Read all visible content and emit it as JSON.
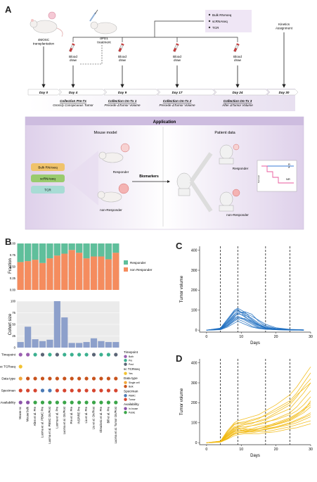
{
  "panels": {
    "a": "A",
    "b": "B",
    "c": "C",
    "d": "D"
  },
  "panelA": {
    "mouse_label": "4MOSC\ntransplantation",
    "treatment_label": "αPD1\ntreatment",
    "assays": [
      "Bulk RNAseq",
      "scRNAseq",
      "TCR"
    ],
    "kinetics_label": "Kinetics\nAssignment",
    "blood_draw": "Blood\ndraw",
    "days": [
      "Day 0",
      "Day 4",
      "Day 9",
      "Day 17",
      "Day 24",
      "Day 30"
    ],
    "collections": [
      {
        "title": "Collection Pre-Tx",
        "sub": "Grossly Conspicuous Tumor"
      },
      {
        "title": "Collection On-Tx 1",
        "sub": "Precede ΔTumor Volume"
      },
      {
        "title": "Collection On-Tx 2",
        "sub": "Precede ΔTumor Volume"
      },
      {
        "title": "Collection On-Tx 3",
        "sub": "After ΔTumor Volume"
      }
    ],
    "application": {
      "title": "Application",
      "mouse_model": "Mouse model",
      "patient_data": "Patient data",
      "assay_boxes": [
        "Bulk RNAseq",
        "scRNAseq",
        "TCR"
      ],
      "responder": "Responder",
      "non_responder": "non-Responder",
      "biomarkers": "Biomarkers",
      "star": "*",
      "km_r": "R",
      "km_nr": "NR",
      "km_ylabel": "Survival"
    }
  },
  "panelB": {
    "fraction_ylabel": "Fraction",
    "cohort_ylabel": "Cohort size",
    "legend": [
      "Responder",
      "non Responder"
    ],
    "meta_rows": [
      "Timepoint",
      "sc TCRseq",
      "Data type",
      "Speciman",
      "Availability"
    ],
    "legend_groups": [
      {
        "title": "Timepoint",
        "items": [
          "Both",
          "Pre",
          "Post"
        ]
      },
      {
        "title": "sc TCRseq",
        "items": [
          "Yes"
        ]
      },
      {
        "title": "Data type",
        "items": [
          "Single cell",
          "Bulk"
        ]
      },
      {
        "title": "Speciman",
        "items": [
          "PBMC",
          "Tumor"
        ]
      },
      {
        "title": "Availability",
        "items": [
          "In-house",
          "Public"
        ]
      }
    ],
    "colors": {
      "responder": "#5fbf9b",
      "non_responder": "#f58c5e",
      "cohort": "#8da0cb",
      "both": "#9a5fb0",
      "pre": "#3bb08f",
      "post": "#5a6475",
      "yes": "#f2c230",
      "single": "#f0a63b",
      "bulk": "#c8531c",
      "pbmc": "#4a7ab5",
      "tumor": "#d6452f",
      "inhouse": "#8a52a8",
      "public": "#3aa548"
    }
  },
  "chart_data": [
    {
      "type": "bar",
      "title": "",
      "ylabel": "Fraction",
      "ylim": [
        0,
        1
      ],
      "yticks": [
        "0.00",
        "0.25",
        "0.50",
        "0.75",
        "1.00"
      ],
      "categories": [
        "Mouse sc",
        "Mouse bulk",
        "Allen et al. Pre",
        "Luoma et al. PBMC Pre",
        "Luoma et al. PBMC On/Post",
        "Luoma et al. Pre",
        "Luoma et al. On/Post",
        "Pre et al. Pre",
        "INSPIRE Pre",
        "Liu et al. Pre",
        "Liu et al. On/Post",
        "Obradovic et al. Pre",
        "Bill et al. Pre",
        "Luoma et al. Tumor On/Post"
      ],
      "series": [
        {
          "name": "non Responder",
          "values": [
            0.6,
            0.62,
            0.65,
            0.58,
            0.68,
            0.74,
            0.78,
            0.86,
            0.8,
            0.68,
            0.72,
            0.72,
            0.66,
            0.8
          ]
        },
        {
          "name": "Responder",
          "values": [
            0.4,
            0.38,
            0.35,
            0.42,
            0.32,
            0.26,
            0.22,
            0.14,
            0.2,
            0.32,
            0.28,
            0.28,
            0.34,
            0.2
          ]
        }
      ],
      "legend": "right"
    },
    {
      "type": "bar",
      "ylabel": "Cohort size",
      "ylim": [
        0,
        100
      ],
      "yticks": [
        "0",
        "25",
        "50",
        "75",
        "100"
      ],
      "values": [
        12,
        45,
        18,
        14,
        17,
        100,
        65,
        10,
        10,
        12,
        20,
        14,
        12,
        12
      ]
    },
    {
      "type": "table",
      "rows": [
        "Timepoint",
        "sc TCRseq",
        "Data type",
        "Speciman",
        "Availability"
      ],
      "columns": 14,
      "cells": {
        "Timepoint": [
          "both",
          "both",
          "pre",
          "post",
          "pre",
          "post",
          "pre",
          "pre",
          "pre",
          "pre",
          "post",
          "pre",
          "pre",
          "post"
        ],
        "sc TCRseq": [
          "yes",
          "",
          "",
          "",
          "",
          "",
          "",
          "",
          "",
          "",
          "",
          "",
          "",
          ""
        ],
        "Data type": [
          "single",
          "bulk",
          "bulk",
          "bulk",
          "bulk",
          "bulk",
          "bulk",
          "bulk",
          "bulk",
          "bulk",
          "bulk",
          "bulk",
          "bulk",
          "bulk"
        ],
        "Speciman": [
          "tumor",
          "tumor",
          "tumor",
          "pbmc",
          "pbmc",
          "tumor",
          "tumor",
          "tumor",
          "tumor",
          "tumor",
          "tumor",
          "tumor",
          "tumor",
          "tumor"
        ],
        "Availability": [
          "inhouse",
          "inhouse",
          "public",
          "public",
          "public",
          "public",
          "public",
          "public",
          "public",
          "public",
          "public",
          "public",
          "public",
          "public"
        ]
      }
    },
    {
      "type": "line",
      "panel": "C",
      "xlabel": "Days",
      "ylabel": "Tumor volume",
      "xlim": [
        -2,
        30
      ],
      "ylim": [
        -10,
        420
      ],
      "xticks": [
        0,
        10,
        20,
        30
      ],
      "yticks": [
        0,
        100,
        200,
        300,
        400
      ],
      "vlines": [
        4,
        9,
        17,
        24
      ],
      "color": "#1f6fc1",
      "x": [
        0,
        4,
        6,
        8,
        9,
        11,
        13,
        15,
        17,
        20,
        24,
        28
      ],
      "series": [
        {
          "values": [
            0,
            5,
            30,
            60,
            70,
            55,
            35,
            15,
            8,
            3,
            1,
            0
          ]
        },
        {
          "values": [
            0,
            8,
            45,
            90,
            100,
            80,
            50,
            25,
            10,
            5,
            2,
            0
          ]
        },
        {
          "values": [
            0,
            3,
            20,
            45,
            55,
            40,
            20,
            10,
            5,
            2,
            0,
            0
          ]
        },
        {
          "values": [
            0,
            10,
            55,
            100,
            110,
            90,
            55,
            30,
            15,
            5,
            2,
            1
          ]
        },
        {
          "values": [
            0,
            6,
            35,
            70,
            80,
            75,
            60,
            35,
            20,
            8,
            3,
            1
          ]
        },
        {
          "values": [
            0,
            4,
            25,
            55,
            65,
            50,
            30,
            12,
            5,
            2,
            1,
            0
          ]
        },
        {
          "values": [
            0,
            7,
            40,
            80,
            95,
            85,
            70,
            50,
            30,
            12,
            4,
            2
          ]
        },
        {
          "values": [
            0,
            2,
            15,
            35,
            45,
            30,
            15,
            8,
            4,
            2,
            1,
            0
          ]
        },
        {
          "values": [
            0,
            9,
            50,
            95,
            105,
            70,
            40,
            20,
            10,
            4,
            2,
            1
          ]
        },
        {
          "values": [
            0,
            5,
            30,
            65,
            85,
            92,
            80,
            45,
            22,
            8,
            3,
            1
          ]
        },
        {
          "values": [
            0,
            3,
            22,
            50,
            60,
            58,
            40,
            25,
            12,
            6,
            2,
            0
          ]
        },
        {
          "values": [
            0,
            6,
            38,
            75,
            88,
            66,
            45,
            28,
            14,
            6,
            3,
            1
          ]
        }
      ]
    },
    {
      "type": "line",
      "panel": "D",
      "xlabel": "Days",
      "ylabel": "Tumor volume",
      "xlim": [
        -2,
        30
      ],
      "ylim": [
        -10,
        420
      ],
      "xticks": [
        0,
        10,
        20,
        30
      ],
      "yticks": [
        0,
        100,
        200,
        300,
        400
      ],
      "vlines": [
        4,
        9,
        17,
        24
      ],
      "color": "#f2b90f",
      "x": [
        0,
        4,
        6,
        8,
        9,
        11,
        13,
        15,
        17,
        20,
        24,
        26,
        28,
        30
      ],
      "series": [
        {
          "values": [
            0,
            8,
            60,
            100,
            110,
            120,
            130,
            140,
            160,
            190,
            240,
            280,
            330,
            380
          ]
        },
        {
          "values": [
            0,
            6,
            50,
            90,
            95,
            100,
            110,
            120,
            140,
            170,
            210,
            250,
            300,
            350
          ]
        },
        {
          "values": [
            0,
            5,
            40,
            70,
            80,
            90,
            95,
            110,
            120,
            150,
            190,
            230,
            280,
            320
          ]
        },
        {
          "values": [
            0,
            7,
            45,
            80,
            85,
            95,
            100,
            105,
            115,
            140,
            170,
            210,
            250,
            300
          ]
        },
        {
          "values": [
            0,
            4,
            35,
            60,
            70,
            75,
            85,
            90,
            100,
            120,
            150,
            180,
            220,
            260
          ]
        },
        {
          "values": [
            0,
            6,
            45,
            75,
            80,
            80,
            85,
            95,
            105,
            115,
            140,
            160,
            190,
            230
          ]
        },
        {
          "values": [
            0,
            5,
            30,
            55,
            60,
            65,
            70,
            80,
            85,
            95,
            120,
            140,
            170,
            200
          ]
        },
        {
          "values": [
            0,
            4,
            25,
            50,
            55,
            60,
            65,
            70,
            75,
            90,
            110,
            130,
            150,
            180
          ]
        },
        {
          "values": [
            0,
            3,
            20,
            45,
            50,
            55,
            60,
            60,
            70,
            80,
            100,
            115,
            130,
            150
          ]
        },
        {
          "values": [
            0,
            5,
            35,
            65,
            70,
            60,
            55,
            60,
            65,
            75,
            90,
            100,
            115,
            130
          ]
        },
        {
          "values": [
            0,
            4,
            25,
            45,
            50,
            50,
            50,
            55,
            55,
            65,
            80,
            90,
            100,
            110
          ]
        },
        {
          "values": [
            0,
            3,
            18,
            35,
            40,
            45,
            45,
            45,
            50,
            55,
            70,
            75,
            85,
            95
          ]
        },
        {
          "values": [
            0,
            6,
            40,
            70,
            75,
            70,
            65,
            70,
            80,
            100,
            125,
            145,
            165,
            190
          ]
        },
        {
          "values": [
            0,
            5,
            32,
            58,
            62,
            58,
            60,
            68,
            78,
            92,
            115,
            135,
            160,
            210
          ]
        },
        {
          "values": [
            0,
            4,
            22,
            42,
            48,
            52,
            58,
            62,
            66,
            78,
            96,
            110,
            125,
            140
          ]
        },
        {
          "values": [
            0,
            7,
            55,
            95,
            100,
            105,
            115,
            125,
            135,
            160,
            200,
            240,
            270,
            300
          ]
        }
      ]
    }
  ]
}
